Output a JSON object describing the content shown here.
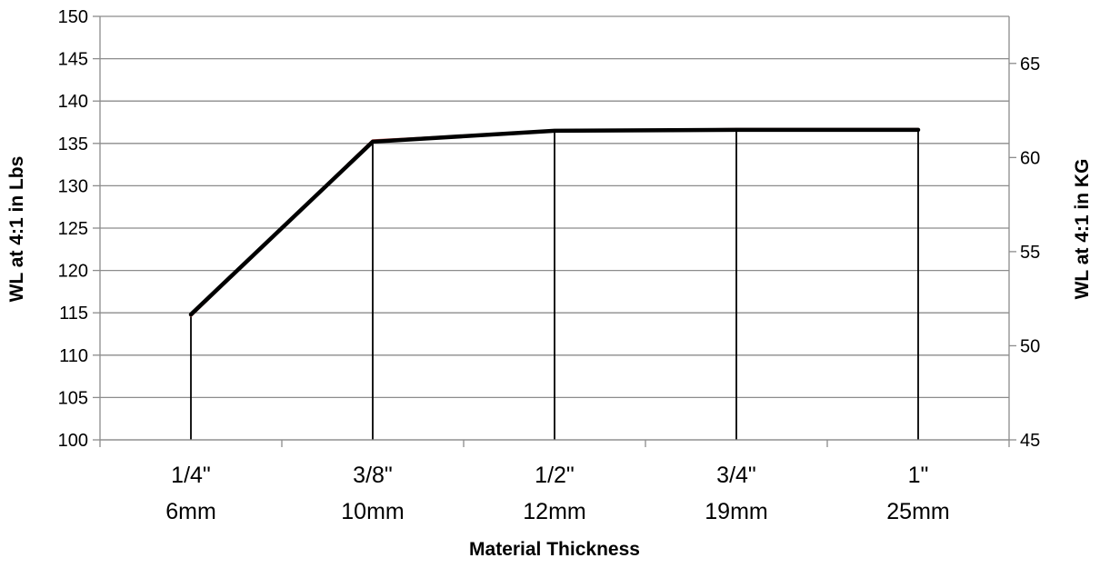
{
  "chart_data": {
    "type": "line",
    "xlabel": "Material Thickness",
    "ylabel": "WL at 4:1 in Lbs",
    "y2label": "WL at 4:1 in KG",
    "categories": [
      [
        "1/4\"",
        "6mm"
      ],
      [
        "3/8\"",
        "10mm"
      ],
      [
        "1/2\"",
        "12mm"
      ],
      [
        "3/4\"",
        "19mm"
      ],
      [
        "1\"",
        "25mm"
      ]
    ],
    "ylim": [
      100,
      150
    ],
    "yticks": [
      100,
      105,
      110,
      115,
      120,
      125,
      130,
      135,
      140,
      145,
      150
    ],
    "y2lim": [
      45,
      67.5
    ],
    "y2ticks": [
      45,
      50,
      55,
      60,
      65
    ],
    "grid": true,
    "drop_lines": true,
    "series": [
      {
        "axis": "right",
        "color": "#c0504d",
        "values": [
          51.6,
          60.9,
          61.4,
          61.5,
          61.5
        ]
      },
      {
        "axis": "left",
        "color": "#000000",
        "values": [
          114.8,
          135.2,
          136.5,
          136.6,
          136.6
        ]
      }
    ]
  }
}
